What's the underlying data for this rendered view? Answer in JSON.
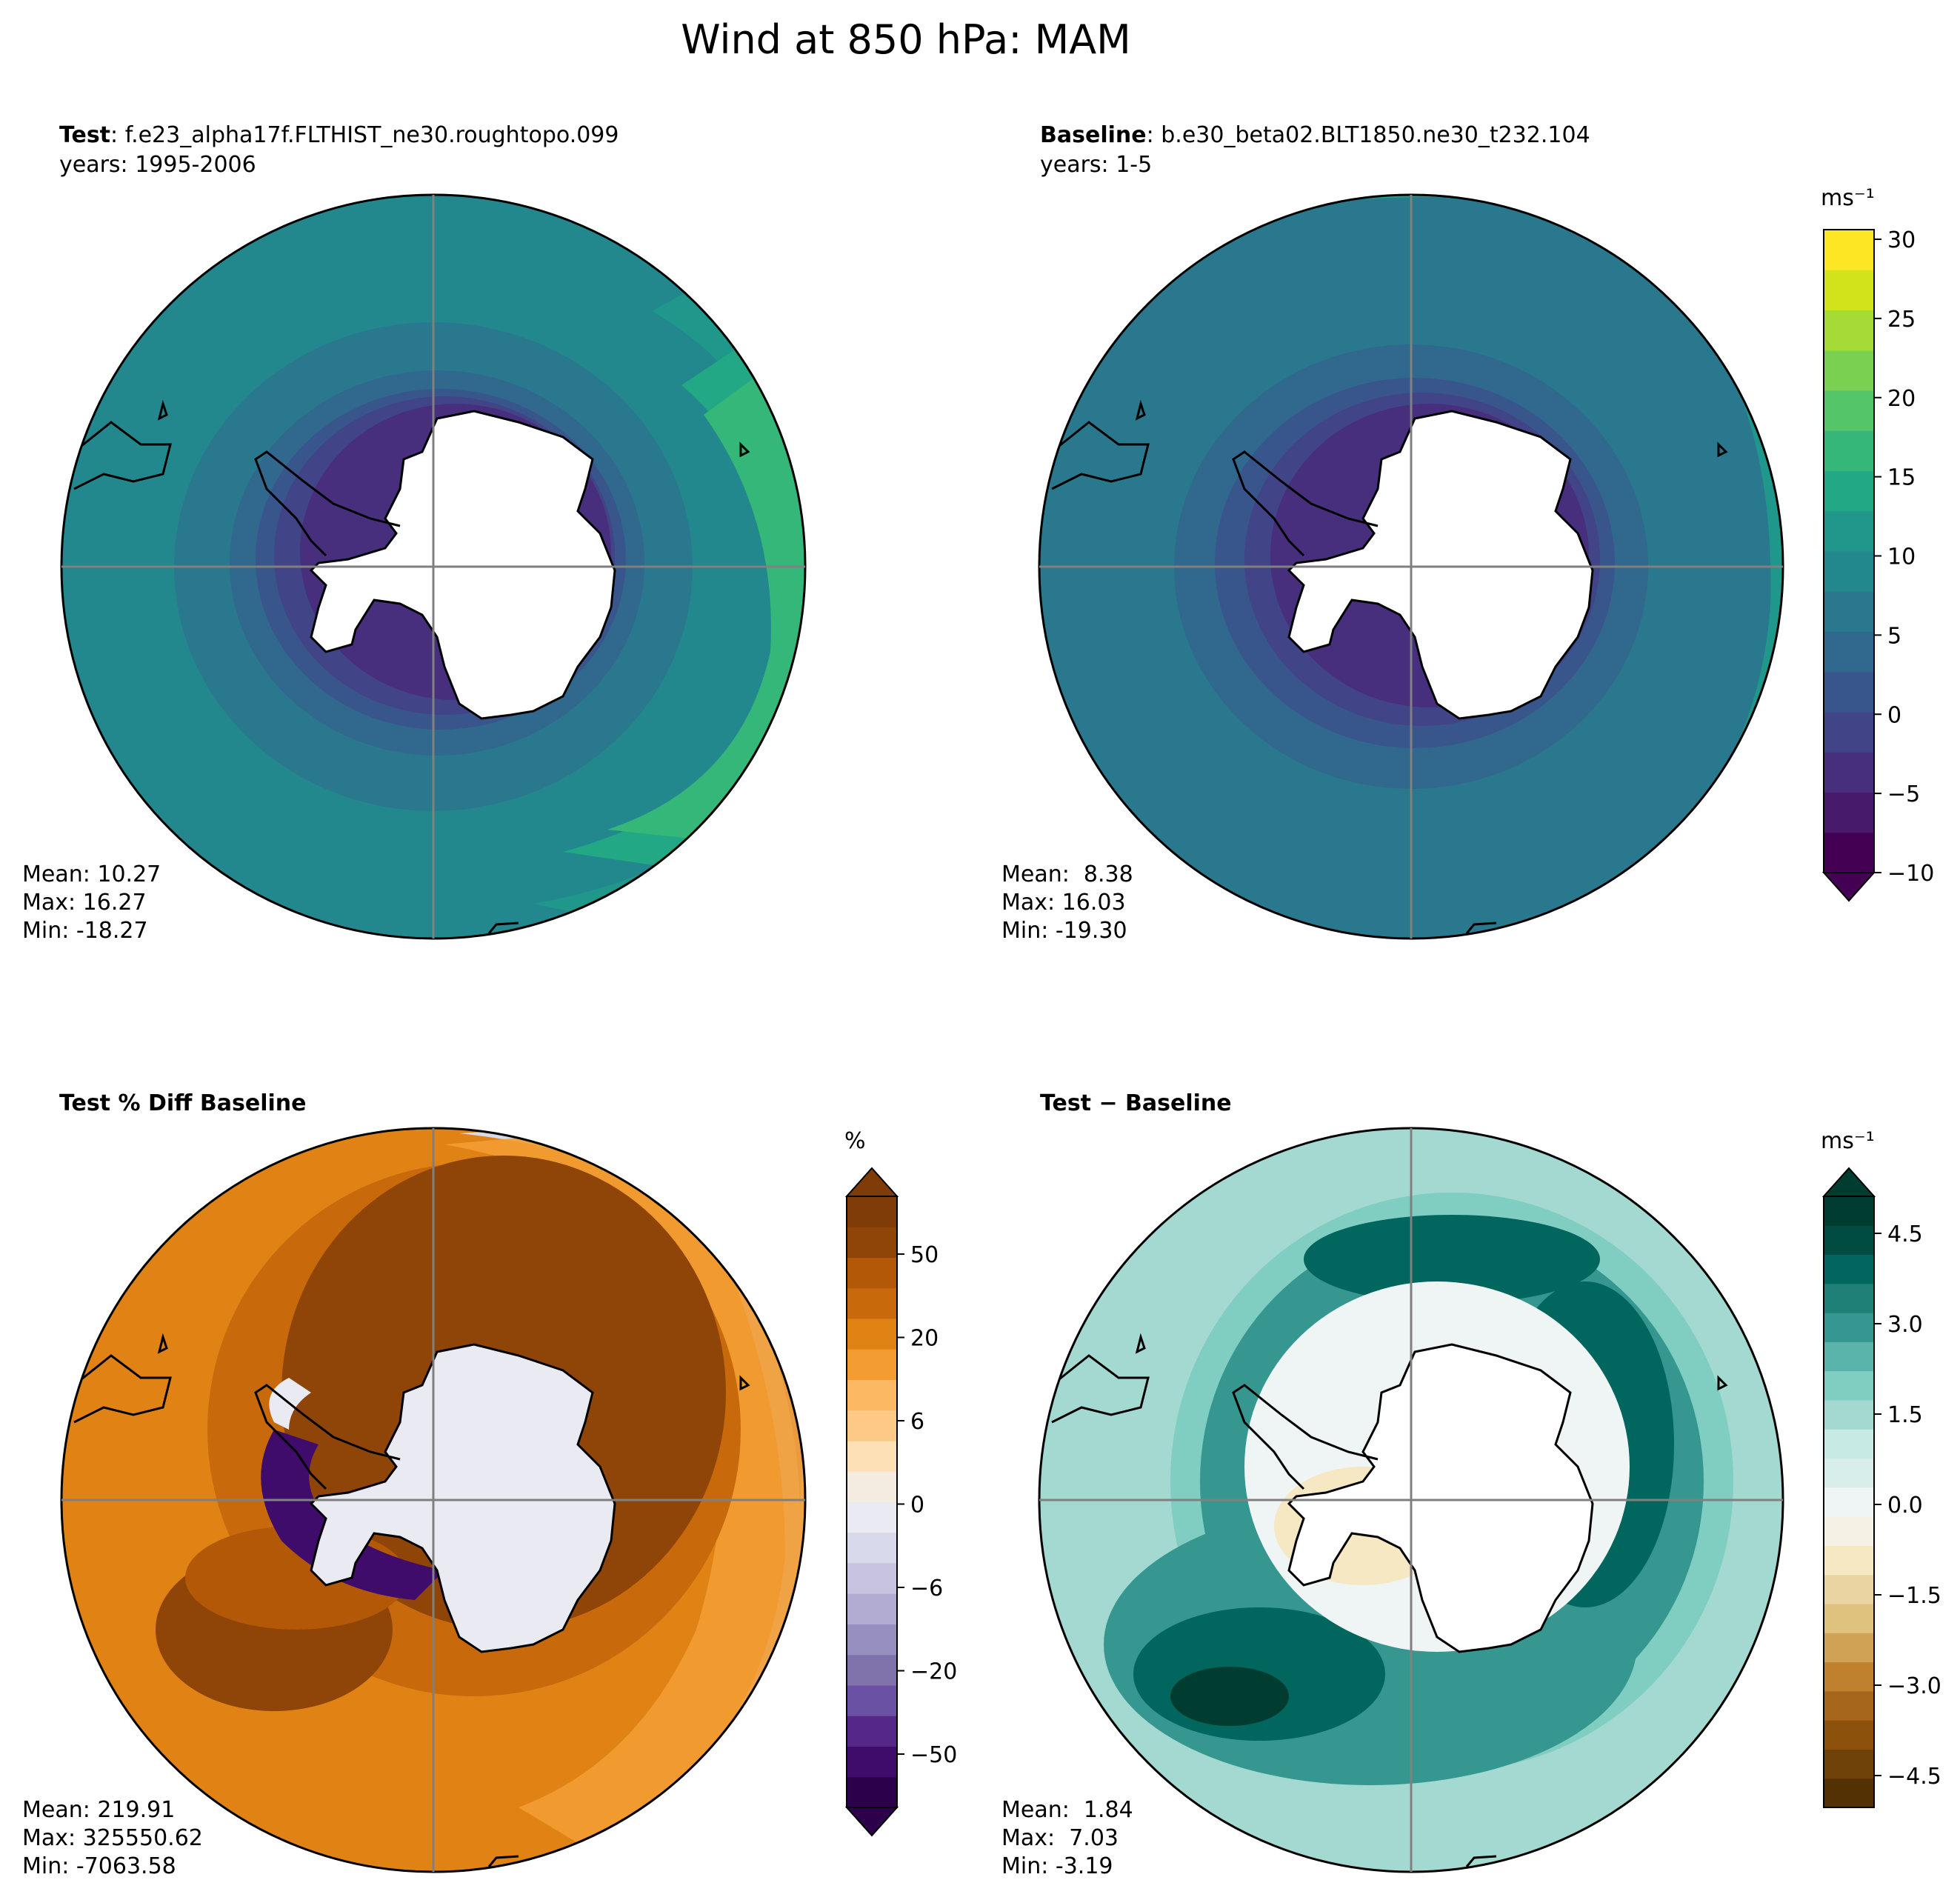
{
  "title": "Wind at 850 hPa: MAM",
  "panels": {
    "test": {
      "label": "Test",
      "case": "f.e23_alpha17f.FLTHIST_ne30.roughtopo.099",
      "years": "years: 1995-2006",
      "mean": "Mean: 10.27",
      "max": "Max: 16.27",
      "min": "Min: -18.27"
    },
    "baseline": {
      "label": "Baseline",
      "case": "b.e30_beta02.BLT1850.ne30_t232.104",
      "years": "years: 1-5",
      "mean": "Mean:  8.38",
      "max": "Max: 16.03",
      "min": "Min: -19.30"
    },
    "pctdiff": {
      "label": "Test % Diff Baseline",
      "mean": "Mean: 219.91",
      "max": "Max: 325550.62",
      "min": "Min: -7063.58"
    },
    "diff": {
      "label": "Test − Baseline",
      "mean": "Mean:  1.84",
      "max": "Max:  7.03",
      "min": "Min: -3.19"
    }
  },
  "colorbars": {
    "field": {
      "unit": "ms⁻¹",
      "ticks": [
        "30",
        "25",
        "20",
        "15",
        "10",
        "5",
        "0",
        "−5",
        "−10"
      ],
      "colors": [
        "#440154",
        "#481a6c",
        "#472f7d",
        "#414487",
        "#39568c",
        "#31688e",
        "#2a788e",
        "#23888e",
        "#1f988b",
        "#22a884",
        "#35b779",
        "#54c568",
        "#7ad151",
        "#a5db36",
        "#d2e21b",
        "#fde725"
      ]
    },
    "pct": {
      "unit": "%",
      "ticks": [
        "50",
        "20",
        "6",
        "0",
        "−6",
        "−20",
        "−50"
      ],
      "colors": [
        "#2d004b",
        "#3f0c6b",
        "#542788",
        "#6a51a3",
        "#8073ac",
        "#988fc1",
        "#b2abd2",
        "#c8c3e0",
        "#d8daeb",
        "#eaebf2",
        "#f4ece0",
        "#fee0b6",
        "#fdc987",
        "#fdb863",
        "#f39c32",
        "#e08214",
        "#c8690c",
        "#b35806",
        "#8f4508",
        "#7f3b08"
      ]
    },
    "diff": {
      "unit": "ms⁻¹",
      "ticks": [
        "4.5",
        "3.0",
        "1.5",
        "0.0",
        "−1.5",
        "−3.0",
        "−4.5"
      ],
      "colors": [
        "#543005",
        "#6f420a",
        "#8c510a",
        "#a6671c",
        "#bf812d",
        "#cfa256",
        "#dfc27d",
        "#ead4a2",
        "#f6e8c3",
        "#f5f1e4",
        "#eef5f4",
        "#d7eeea",
        "#c7eae5",
        "#a3d9d0",
        "#80cdc1",
        "#5ab4ac",
        "#35978f",
        "#1f8078",
        "#01665e",
        "#004c42",
        "#003c30"
      ]
    }
  },
  "map_colors": {
    "land": "#ffffff",
    "coast": "#000000",
    "gridline": "#808080"
  }
}
